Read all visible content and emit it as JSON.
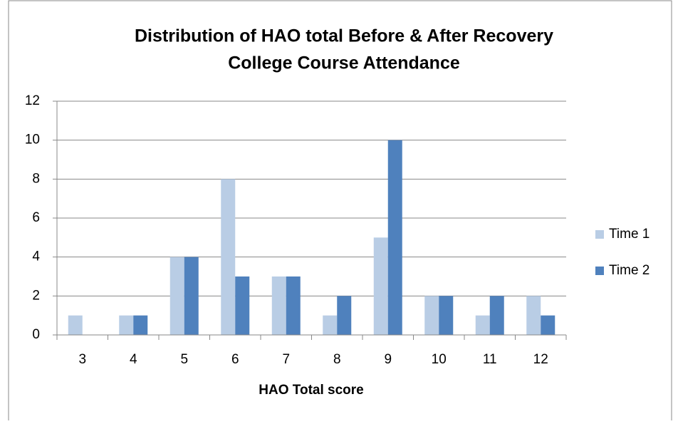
{
  "chart_data": {
    "type": "bar",
    "title": [
      "Distribution of HAO total Before & After Recovery",
      "College Course Attendance"
    ],
    "x_label": "HAO Total score",
    "categories": [
      "3",
      "4",
      "5",
      "6",
      "7",
      "8",
      "9",
      "10",
      "11",
      "12"
    ],
    "series": [
      {
        "name": "Time 1",
        "color": "#b9cde5",
        "values": [
          1,
          1,
          4,
          8,
          3,
          1,
          5,
          2,
          1,
          2
        ]
      },
      {
        "name": "Time 2",
        "color": "#4f81bd",
        "values": [
          0,
          1,
          4,
          3,
          3,
          2,
          10,
          2,
          2,
          1
        ]
      }
    ],
    "ylim": [
      0,
      12
    ],
    "yticks": [
      0,
      2,
      4,
      6,
      8,
      10,
      12
    ],
    "grid": true,
    "legend": "right"
  }
}
